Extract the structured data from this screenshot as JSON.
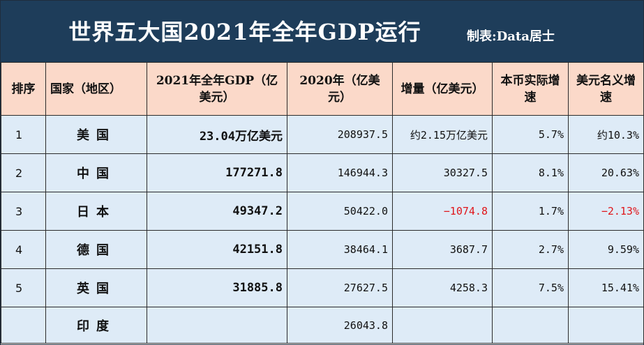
{
  "title": "世界五大国2021年全年GDP运行",
  "maker": "制表:Data居士",
  "headers": {
    "rank": "排序",
    "country": "国家（地区）",
    "gdp2021": "2021年全年GDP（亿美元）",
    "gdp2020": "2020年（亿美元）",
    "increase": "增量（亿美元）",
    "local_growth": "本币实际增速",
    "usd_growth": "美元名义增速"
  },
  "rows": [
    {
      "rank": "1",
      "country": "美国",
      "gdp2021": "23.04万亿美元",
      "gdp2020": "208937.5",
      "increase": "约2.15万亿美元",
      "local_growth": "5.7%",
      "usd_growth": "约10.3%"
    },
    {
      "rank": "2",
      "country": "中国",
      "gdp2021": "177271.8",
      "gdp2020": "146944.3",
      "increase": "30327.5",
      "local_growth": "8.1%",
      "usd_growth": "20.63%"
    },
    {
      "rank": "3",
      "country": "日本",
      "gdp2021": "49347.2",
      "gdp2020": "50422.0",
      "increase": "−1074.8",
      "local_growth": "1.7%",
      "usd_growth": "−2.13%"
    },
    {
      "rank": "4",
      "country": "德国",
      "gdp2021": "42151.8",
      "gdp2020": "38464.1",
      "increase": "3687.7",
      "local_growth": "2.7%",
      "usd_growth": "9.59%"
    },
    {
      "rank": "5",
      "country": "英国",
      "gdp2021": "31885.8",
      "gdp2020": "27627.5",
      "increase": "4258.3",
      "local_growth": "7.5%",
      "usd_growth": "15.41%"
    },
    {
      "rank": "",
      "country": "印度",
      "gdp2021": "",
      "gdp2020": "26043.8",
      "increase": "",
      "local_growth": "",
      "usd_growth": ""
    }
  ],
  "colors": {
    "title_bg": "#1e3d5a",
    "header_bg": "#fbd9c9",
    "row_bg": "#deebf7",
    "negative": "#e0161b"
  }
}
